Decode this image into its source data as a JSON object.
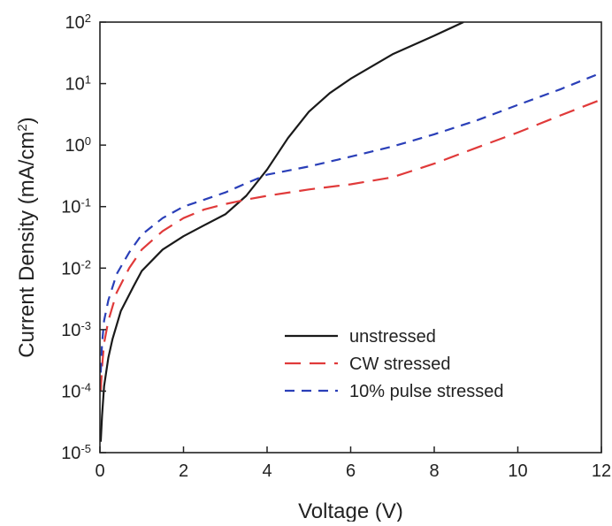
{
  "chart_data": {
    "type": "line",
    "title": "",
    "xlabel": "Voltage (V)",
    "ylabel": "Current Density (mA/cm",
    "ylabel_sup": "2",
    "ylabel_end": ")",
    "xlim": [
      0,
      12
    ],
    "ylim": [
      1e-05,
      100
    ],
    "yscale": "log",
    "x_ticks": [
      0,
      2,
      4,
      6,
      8,
      10,
      12
    ],
    "x_tick_labels": [
      "0",
      "2",
      "4",
      "6",
      "8",
      "10",
      "12"
    ],
    "y_ticks": [
      1e-05,
      0.0001,
      0.001,
      0.01,
      0.1,
      1,
      10,
      100
    ],
    "y_tick_labels": [
      {
        "base": "10",
        "exp": "-5"
      },
      {
        "base": "10",
        "exp": "-4"
      },
      {
        "base": "10",
        "exp": "-3"
      },
      {
        "base": "10",
        "exp": "-2"
      },
      {
        "base": "10",
        "exp": "-1"
      },
      {
        "base": "10",
        "exp": "0"
      },
      {
        "base": "10",
        "exp": "1"
      },
      {
        "base": "10",
        "exp": "2"
      }
    ],
    "grid": false,
    "legend_position": "lower-right",
    "series": [
      {
        "name": "unstressed",
        "color": "#1a1a1a",
        "dash": "solid",
        "points": [
          [
            0.02,
            1.5e-05
          ],
          [
            0.05,
            4e-05
          ],
          [
            0.1,
            0.00012
          ],
          [
            0.2,
            0.00035
          ],
          [
            0.3,
            0.0007
          ],
          [
            0.5,
            0.002
          ],
          [
            0.8,
            0.005
          ],
          [
            1.0,
            0.009
          ],
          [
            1.5,
            0.02
          ],
          [
            2.0,
            0.033
          ],
          [
            2.5,
            0.05
          ],
          [
            3.0,
            0.075
          ],
          [
            3.5,
            0.15
          ],
          [
            4.0,
            0.4
          ],
          [
            4.5,
            1.3
          ],
          [
            5.0,
            3.5
          ],
          [
            5.5,
            7
          ],
          [
            6.0,
            12
          ],
          [
            7.0,
            30
          ],
          [
            8.0,
            60
          ],
          [
            8.7,
            100
          ]
        ]
      },
      {
        "name": "CW stressed",
        "color": "#e03a3a",
        "dash": "long",
        "points": [
          [
            0.02,
            0.0001
          ],
          [
            0.05,
            0.00025
          ],
          [
            0.1,
            0.0006
          ],
          [
            0.2,
            0.0014
          ],
          [
            0.4,
            0.004
          ],
          [
            0.7,
            0.01
          ],
          [
            1.0,
            0.02
          ],
          [
            1.5,
            0.04
          ],
          [
            2.0,
            0.065
          ],
          [
            2.5,
            0.09
          ],
          [
            3.0,
            0.11
          ],
          [
            3.5,
            0.13
          ],
          [
            4.0,
            0.15
          ],
          [
            5.0,
            0.19
          ],
          [
            6.0,
            0.23
          ],
          [
            7.0,
            0.3
          ],
          [
            8.0,
            0.5
          ],
          [
            9.0,
            0.9
          ],
          [
            10.0,
            1.6
          ],
          [
            11.0,
            3.0
          ],
          [
            12.0,
            5.5
          ]
        ]
      },
      {
        "name": "10% pulse stressed",
        "color": "#2a3fb8",
        "dash": "short",
        "points": [
          [
            0.02,
            0.0002
          ],
          [
            0.05,
            0.0006
          ],
          [
            0.1,
            0.0014
          ],
          [
            0.2,
            0.003
          ],
          [
            0.4,
            0.008
          ],
          [
            0.7,
            0.018
          ],
          [
            1.0,
            0.035
          ],
          [
            1.5,
            0.065
          ],
          [
            2.0,
            0.1
          ],
          [
            2.5,
            0.13
          ],
          [
            3.0,
            0.17
          ],
          [
            3.5,
            0.24
          ],
          [
            4.0,
            0.33
          ],
          [
            5.0,
            0.45
          ],
          [
            6.0,
            0.65
          ],
          [
            7.0,
            0.95
          ],
          [
            8.0,
            1.5
          ],
          [
            9.0,
            2.5
          ],
          [
            10.0,
            4.5
          ],
          [
            11.0,
            8.0
          ],
          [
            12.0,
            15
          ]
        ]
      }
    ]
  }
}
